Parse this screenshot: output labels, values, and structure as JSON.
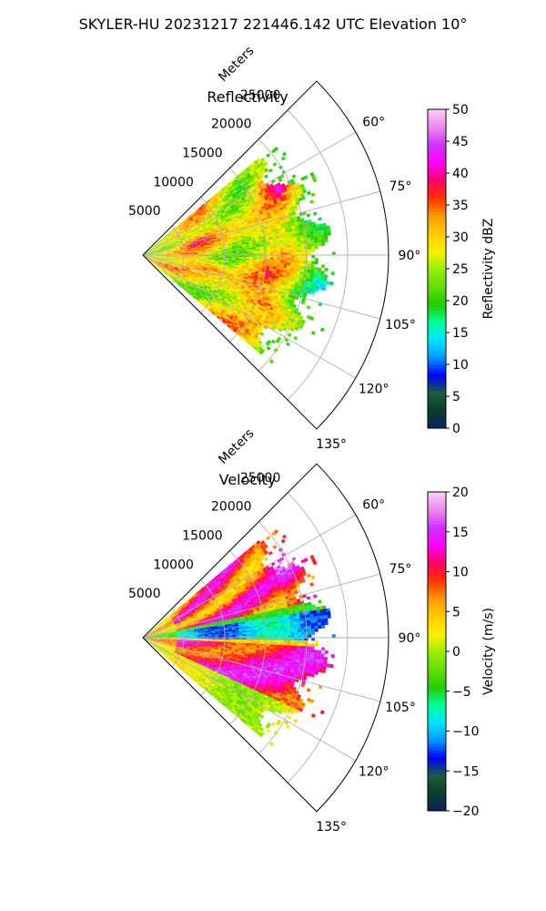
{
  "figure": {
    "title": "SKYLER-HU  20231217  221446.142 UTC Elevation 10°"
  },
  "chart_data": [
    {
      "type": "polar-sector",
      "title": "Reflectivity",
      "radial_label": "Meters",
      "radial_ticks": [
        5000,
        10000,
        15000,
        20000,
        25000
      ],
      "radial_tick_labels": [
        "5000",
        "10000",
        "15000",
        "20000",
        "25000"
      ],
      "rmax": 30000,
      "theta_range_deg": [
        45,
        135
      ],
      "theta_ticks_deg": [
        60,
        75,
        90,
        105,
        120,
        135
      ],
      "theta_tick_labels": [
        "60°",
        "75°",
        "90°",
        "105°",
        "120°",
        "135°"
      ],
      "data_extent": {
        "theta_deg": [
          50,
          130
        ],
        "approx_max_range_m": 24000
      },
      "colorbar": {
        "label": "Reflectivity dBZ",
        "min": 0,
        "max": 50,
        "ticks": [
          0,
          5,
          10,
          15,
          20,
          25,
          30,
          35,
          40,
          45,
          50
        ],
        "tick_labels": [
          "0",
          "5",
          "10",
          "15",
          "20",
          "25",
          "30",
          "35",
          "40",
          "45",
          "50"
        ],
        "colors": [
          "#0b1f6b",
          "#0a3d2a",
          "#1d5c3a",
          "#0000ff",
          "#0099ff",
          "#00e5ff",
          "#00ff99",
          "#22cc00",
          "#66dd00",
          "#99ee00",
          "#ffee00",
          "#ffcc00",
          "#ff9900",
          "#ff3300",
          "#ff0066",
          "#ff00ff",
          "#cc33ff",
          "#ee88ee",
          "#ffccff"
        ]
      },
      "field_description": "mostly 25-33 dBZ (yellow-orange) with red cores up to ~38 dBZ; 18-22 dBZ green fringe at far range"
    },
    {
      "type": "polar-sector",
      "title": "Velocity",
      "radial_label": "Meters",
      "radial_ticks": [
        5000,
        10000,
        15000,
        20000,
        25000
      ],
      "radial_tick_labels": [
        "5000",
        "10000",
        "15000",
        "20000",
        "25000"
      ],
      "rmax": 30000,
      "theta_range_deg": [
        45,
        135
      ],
      "theta_ticks_deg": [
        60,
        75,
        90,
        105,
        120,
        135
      ],
      "theta_tick_labels": [
        "60°",
        "75°",
        "90°",
        "105°",
        "120°",
        "135°"
      ],
      "data_extent": {
        "theta_deg": [
          50,
          130
        ],
        "approx_max_range_m": 24000
      },
      "colorbar": {
        "label": "Velocity (m/s)",
        "min": -20,
        "max": 20,
        "ticks": [
          -20,
          -15,
          -10,
          -5,
          0,
          5,
          10,
          15,
          20
        ],
        "tick_labels": [
          "−20",
          "−15",
          "−10",
          "−5",
          "0",
          "5",
          "10",
          "15",
          "20"
        ],
        "colors": [
          "#0b1f6b",
          "#0a3d2a",
          "#1d5c3a",
          "#0000ff",
          "#0099ff",
          "#00e5ff",
          "#00ff99",
          "#22cc00",
          "#66dd00",
          "#99ee00",
          "#ffee00",
          "#ffcc00",
          "#ff9900",
          "#ff3300",
          "#ff0066",
          "#ff00ff",
          "#cc33ff",
          "#ee88ee",
          "#ffccff"
        ]
      },
      "field_description": "+8 to +15 m/s (red/magenta) at 55-78°, -8 to -12 m/s (cyan) near 82-90°, +10 to +16 m/s (red/purple) at 95-115°, 0 to +3 m/s (yellow) at 115-130°"
    }
  ]
}
